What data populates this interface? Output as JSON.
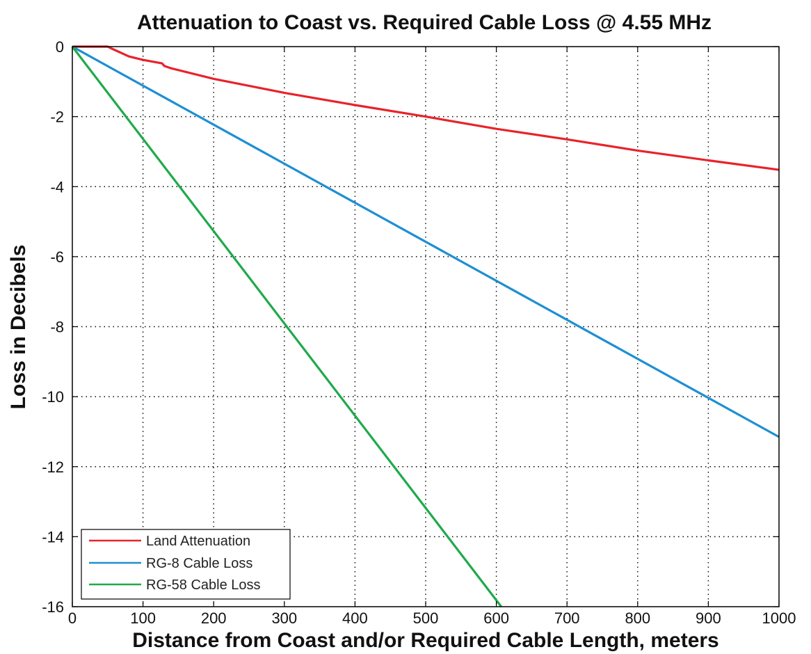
{
  "chart_data": {
    "type": "line",
    "title": "Attenuation to Coast vs. Required Cable Loss @ 4.55 MHz",
    "xlabel": "Distance from Coast and/or Required Cable Length, meters",
    "ylabel": "Loss in Decibels",
    "xlim": [
      0,
      1000
    ],
    "ylim": [
      -16,
      0
    ],
    "xticks": [
      0,
      100,
      200,
      300,
      400,
      500,
      600,
      700,
      800,
      900,
      1000
    ],
    "yticks": [
      0,
      -2,
      -4,
      -6,
      -8,
      -10,
      -12,
      -14,
      -16
    ],
    "xtick_labels": [
      "0",
      "100",
      "200",
      "300",
      "400",
      "500",
      "600",
      "700",
      "800",
      "900",
      "1000"
    ],
    "ytick_labels": [
      "0",
      "-2",
      "-4",
      "-6",
      "-8",
      "-10",
      "-12",
      "-14",
      "-16"
    ],
    "grid": "dotted",
    "legend_position": "bottom-left",
    "series": [
      {
        "name": "Land Attenuation",
        "color": "#e8232b",
        "x": [
          0,
          50,
          55,
          80,
          100,
          127,
          130,
          140,
          200,
          300,
          400,
          500,
          600,
          700,
          800,
          900,
          1000
        ],
        "y": [
          0,
          0,
          -0.05,
          -0.28,
          -0.38,
          -0.48,
          -0.55,
          -0.62,
          -0.92,
          -1.32,
          -1.67,
          -2.0,
          -2.35,
          -2.65,
          -2.97,
          -3.25,
          -3.52
        ]
      },
      {
        "name": "RG-8 Cable Loss",
        "color": "#1e8fd2",
        "x": [
          0,
          1000
        ],
        "y": [
          0,
          -11.15
        ]
      },
      {
        "name": "RG-58 Cable Loss",
        "color": "#1faa4a",
        "x": [
          0,
          607
        ],
        "y": [
          0,
          -16
        ]
      }
    ]
  }
}
